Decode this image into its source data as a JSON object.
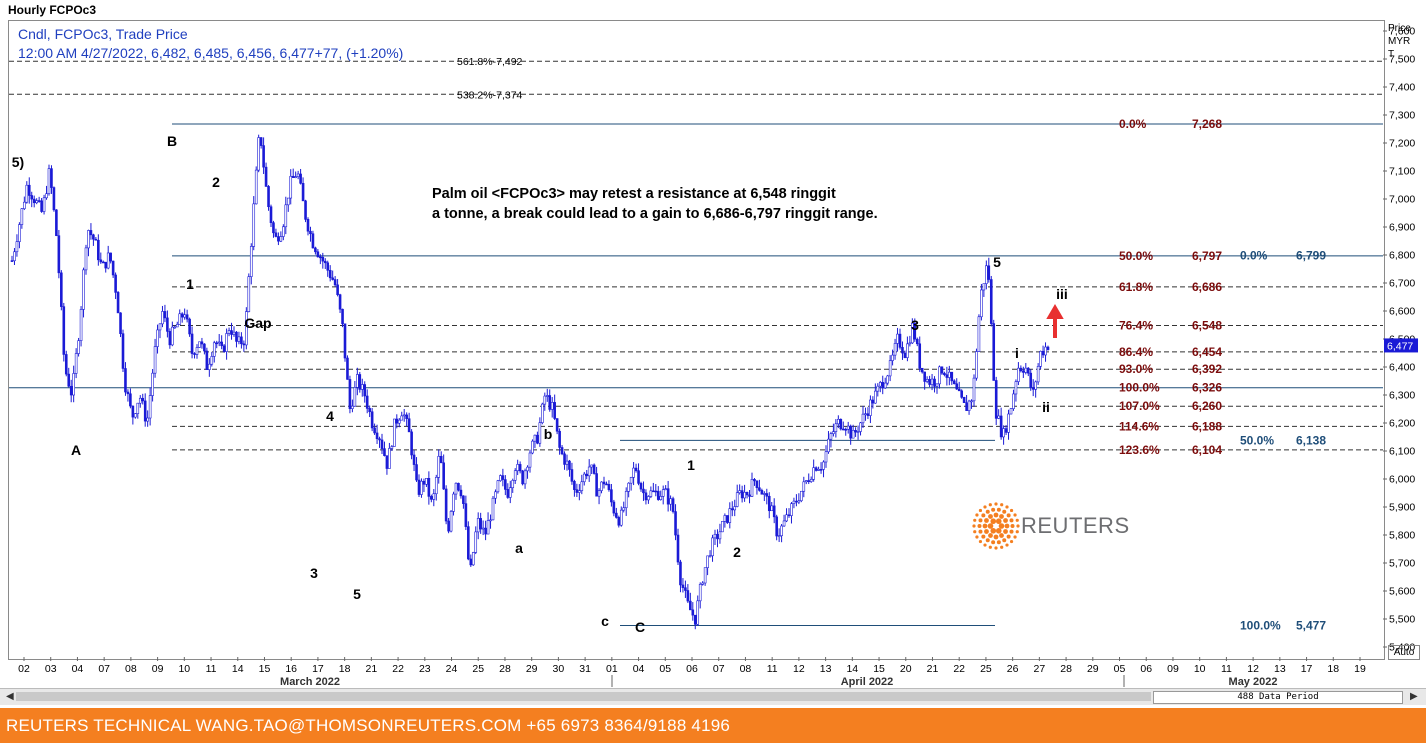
{
  "title": "Hourly FCPOc3",
  "info": {
    "line1": "Cndl, FCPOc3, Trade Price",
    "line2": "12:00 AM 4/27/2022, 6,482, 6,485, 6,456, 6,477+77, (+1.20%)"
  },
  "note": {
    "line1": "Palm oil <FCPOc3> may retest a resistance at 6,548 ringgit",
    "line2": "a tonne, a break could lead to a gain to 6,686-6,797 ringgit range."
  },
  "price_axis": {
    "header": [
      "Price",
      "MYR",
      "T"
    ],
    "auto_button": "Auto"
  },
  "scrollbar": {
    "left_arrow": "◀",
    "right_arrow": "▶",
    "data_period": "488 Data Period"
  },
  "footer": {
    "text": "REUTERS TECHNICAL  WANG.TAO@THOMSONREUTERS.COM  +65 6973 8364/9188 4196"
  },
  "logo": {
    "text": "REUTERS"
  },
  "colors": {
    "candle": "#1a1ad6",
    "fib_red": "#7b0c0c",
    "fib_blue": "#1f4e79",
    "line": "#1f4e79",
    "accent_arrow": "#e83030",
    "footer": "#f47f20"
  },
  "chart_data": {
    "type": "candlestick",
    "series": [
      {
        "name": "FCPOc3"
      }
    ],
    "ylim": [
      5400,
      7600
    ],
    "yticks": [
      "7,600",
      "7,500",
      "7,400",
      "7,300",
      "7,200",
      "7,100",
      "7,000",
      "6,900",
      "6,800",
      "6,700",
      "6,600",
      "6,500",
      "6,400",
      "6,300",
      "6,200",
      "6,100",
      "6,000",
      "5,900",
      "5,800",
      "5,700",
      "5,600",
      "5,500",
      "5,400"
    ],
    "current_price_label": "6,477",
    "x_dates": [
      "02",
      "03",
      "04",
      "07",
      "08",
      "09",
      "10",
      "11",
      "14",
      "15",
      "16",
      "17",
      "18",
      "21",
      "22",
      "23",
      "24",
      "25",
      "28",
      "29",
      "30",
      "31",
      "01",
      "04",
      "05",
      "06",
      "07",
      "08",
      "11",
      "12",
      "13",
      "14",
      "15",
      "20",
      "21",
      "22",
      "25",
      "26",
      "27",
      "28",
      "29",
      "05",
      "06",
      "09",
      "10",
      "11",
      "12",
      "13",
      "17",
      "18",
      "19"
    ],
    "month_labels": [
      "March 2022",
      "April 2022",
      "May 2022"
    ],
    "price_path": [
      [
        0,
        6780
      ],
      [
        2,
        7050
      ],
      [
        4,
        6950
      ],
      [
        5,
        7100
      ],
      [
        6,
        6850
      ],
      [
        7,
        6400
      ],
      [
        8,
        6300
      ],
      [
        9,
        6550
      ],
      [
        10,
        6900
      ],
      [
        11,
        6850
      ],
      [
        12,
        6750
      ],
      [
        13,
        6800
      ],
      [
        14,
        6650
      ],
      [
        15,
        6350
      ],
      [
        16,
        6220
      ],
      [
        17,
        6300
      ],
      [
        18,
        6200
      ],
      [
        19,
        6450
      ],
      [
        20,
        6600
      ],
      [
        21,
        6500
      ],
      [
        22,
        6550
      ],
      [
        23,
        6600
      ],
      [
        24,
        6450
      ],
      [
        25,
        6500
      ],
      [
        26,
        6400
      ],
      [
        27,
        6500
      ],
      [
        28,
        6450
      ],
      [
        29,
        6550
      ],
      [
        30,
        6480
      ],
      [
        31,
        6500
      ],
      [
        32,
        6900
      ],
      [
        33,
        7250
      ],
      [
        34,
        7000
      ],
      [
        35,
        6850
      ],
      [
        36,
        6900
      ],
      [
        37,
        7050
      ],
      [
        38,
        7100
      ],
      [
        39,
        6950
      ],
      [
        40,
        6850
      ],
      [
        41,
        6800
      ],
      [
        42,
        6750
      ],
      [
        43,
        6700
      ],
      [
        44,
        6550
      ],
      [
        45,
        6250
      ],
      [
        46,
        6350
      ],
      [
        47,
        6300
      ],
      [
        48,
        6200
      ],
      [
        49,
        6150
      ],
      [
        50,
        6050
      ],
      [
        51,
        6200
      ],
      [
        52,
        6250
      ],
      [
        53,
        6150
      ],
      [
        54,
        5950
      ],
      [
        55,
        6000
      ],
      [
        56,
        5900
      ],
      [
        57,
        6100
      ],
      [
        58,
        5800
      ],
      [
        59,
        6000
      ],
      [
        60,
        5950
      ],
      [
        61,
        5650
      ],
      [
        62,
        5850
      ],
      [
        63,
        5800
      ],
      [
        64,
        5900
      ],
      [
        65,
        6000
      ],
      [
        66,
        5950
      ],
      [
        67,
        6050
      ],
      [
        68,
        6000
      ],
      [
        69,
        6100
      ],
      [
        70,
        6150
      ],
      [
        71,
        6300
      ],
      [
        72,
        6250
      ],
      [
        73,
        6100
      ],
      [
        74,
        6050
      ],
      [
        75,
        5950
      ],
      [
        76,
        6000
      ],
      [
        77,
        6050
      ],
      [
        78,
        5950
      ],
      [
        79,
        6000
      ],
      [
        80,
        5900
      ],
      [
        81,
        5850
      ],
      [
        82,
        5950
      ],
      [
        83,
        6050
      ],
      [
        84,
        5950
      ],
      [
        85,
        5950
      ],
      [
        86,
        5950
      ],
      [
        87,
        5950
      ],
      [
        88,
        5900
      ],
      [
        89,
        5650
      ],
      [
        90,
        5550
      ],
      [
        91,
        5500
      ],
      [
        92,
        5650
      ],
      [
        93,
        5750
      ],
      [
        94,
        5800
      ],
      [
        95,
        5850
      ],
      [
        96,
        5900
      ],
      [
        97,
        5950
      ],
      [
        98,
        5950
      ],
      [
        99,
        6000
      ],
      [
        100,
        5950
      ],
      [
        101,
        5900
      ],
      [
        102,
        5800
      ],
      [
        103,
        5850
      ],
      [
        104,
        5900
      ],
      [
        105,
        5950
      ],
      [
        106,
        6000
      ],
      [
        107,
        6050
      ],
      [
        108,
        6050
      ],
      [
        109,
        6150
      ],
      [
        110,
        6200
      ],
      [
        111,
        6200
      ],
      [
        112,
        6150
      ],
      [
        113,
        6200
      ],
      [
        114,
        6250
      ],
      [
        115,
        6300
      ],
      [
        116,
        6350
      ],
      [
        117,
        6400
      ],
      [
        118,
        6500
      ],
      [
        119,
        6450
      ],
      [
        120,
        6550
      ],
      [
        121,
        6400
      ],
      [
        122,
        6350
      ],
      [
        123,
        6350
      ],
      [
        124,
        6400
      ],
      [
        125,
        6350
      ],
      [
        126,
        6300
      ],
      [
        127,
        6250
      ],
      [
        128,
        6300
      ],
      [
        129,
        6650
      ],
      [
        130,
        6780
      ],
      [
        131,
        6250
      ],
      [
        132,
        6150
      ],
      [
        133,
        6250
      ],
      [
        134,
        6400
      ],
      [
        135,
        6400
      ],
      [
        136,
        6300
      ],
      [
        137,
        6450
      ],
      [
        138,
        6480
      ]
    ],
    "fib_retracement": [
      {
        "label": "0.0%",
        "value": "7,268"
      },
      {
        "label": "50.0%",
        "value": "6,797"
      },
      {
        "label": "61.8%",
        "value": "6,686"
      },
      {
        "label": "76.4%",
        "value": "6,548"
      },
      {
        "label": "86.4%",
        "value": "6,454"
      },
      {
        "label": "93.0%",
        "value": "6,392"
      },
      {
        "label": "100.0%",
        "value": "6,326"
      },
      {
        "label": "107.0%",
        "value": "6,260"
      },
      {
        "label": "114.6%",
        "value": "6,188"
      },
      {
        "label": "123.6%",
        "value": "6,104"
      }
    ],
    "fib_extension": [
      {
        "label": "561.8%",
        "value": "7,492"
      },
      {
        "label": "538.2%",
        "value": "7,374"
      }
    ],
    "fib_secondary": [
      {
        "label": "0.0%",
        "value": "6,799"
      },
      {
        "label": "50.0%",
        "value": "6,138"
      },
      {
        "label": "100.0%",
        "value": "5,477"
      }
    ],
    "wave_labels": [
      {
        "text": "5)",
        "date_index": 0,
        "price": 7330
      },
      {
        "text": "A",
        "date_index": 3,
        "price": 6130
      },
      {
        "text": "B",
        "date_index": 33,
        "price": 7330
      },
      {
        "text": "2",
        "date_index": 39,
        "price": 7160
      },
      {
        "text": "1",
        "date_index": 36,
        "price": 6750
      },
      {
        "text": "Gap",
        "date_index": 46,
        "price": 6630
      },
      {
        "text": "4",
        "date_index": 62,
        "price": 6340
      },
      {
        "text": "3",
        "date_index": 59,
        "price": 5600
      },
      {
        "text": "5",
        "date_index": 67,
        "price": 5520
      },
      {
        "text": "b",
        "date_index": 101,
        "price": 6190
      },
      {
        "text": "a",
        "date_index": 96,
        "price": 5730
      },
      {
        "text": "c",
        "date_index": 111,
        "price": 5440
      },
      {
        "text": "C",
        "date_index": 117,
        "price": 5430
      },
      {
        "text": "1",
        "date_index": 127,
        "price": 6080
      },
      {
        "text": "2",
        "date_index": 135,
        "price": 5710
      },
      {
        "text": "3",
        "date_index": 165,
        "price": 6610
      },
      {
        "text": "5",
        "date_index": 183,
        "price": 6840
      },
      {
        "text": "i",
        "date_index": 187,
        "price": 6490
      },
      {
        "text": "ii",
        "date_index": 193,
        "price": 6280
      },
      {
        "text": "iii",
        "date_index": 195,
        "price": 6740
      }
    ]
  }
}
